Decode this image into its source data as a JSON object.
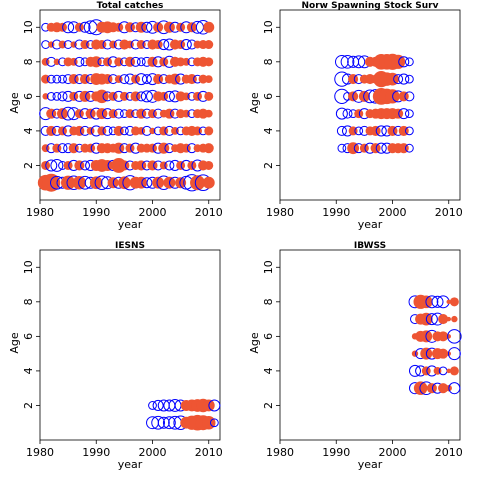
{
  "figure": {
    "marker_colors": {
      "negative": "#0000ff",
      "positive": "#ee5533"
    }
  },
  "chart_data": [
    {
      "type": "scatter",
      "subtype": "bubble",
      "title": "Total catches",
      "xlabel": "year",
      "ylabel": "Age",
      "xlim": [
        1980,
        2012
      ],
      "ylim": [
        0,
        11
      ],
      "xticks": [
        1980,
        1990,
        2000,
        2010
      ],
      "yticks": [
        2,
        4,
        6,
        8,
        10
      ],
      "grid": false,
      "legend": "none",
      "years": [
        1981,
        1982,
        1983,
        1984,
        1985,
        1986,
        1987,
        1988,
        1989,
        1990,
        1991,
        1992,
        1993,
        1994,
        1995,
        1996,
        1997,
        1998,
        1999,
        2000,
        2001,
        2002,
        2003,
        2004,
        2005,
        2006,
        2007,
        2008,
        2009,
        2010
      ],
      "ages": [
        1,
        2,
        3,
        4,
        5,
        6,
        7,
        8,
        9,
        10
      ],
      "residuals_by_age": [
        [
          1.2,
          1.6,
          -0.8,
          -0.6,
          1.0,
          -0.9,
          0.9,
          -0.8,
          -0.6,
          0.8,
          -0.9,
          -0.7,
          0.6,
          -0.6,
          0.8,
          -1.0,
          0.7,
          0.7,
          -0.5,
          -0.6,
          0.7,
          -0.9,
          0.7,
          -0.6,
          0.6,
          -0.8,
          -1.3,
          1.1,
          -1.2,
          0.7
        ],
        [
          0.4,
          -0.6,
          -0.7,
          -0.3,
          0.4,
          -0.5,
          0.5,
          -0.4,
          -0.5,
          0.6,
          0.8,
          0.6,
          -0.5,
          1.1,
          0.5,
          -0.4,
          0.4,
          0.5,
          -0.4,
          0.5,
          -0.4,
          0.3,
          -0.4,
          -0.5,
          0.4,
          -0.5,
          0.4,
          -0.6,
          0.5,
          0.4
        ],
        [
          0.3,
          -0.4,
          0.4,
          -0.4,
          -0.4,
          0.5,
          -0.3,
          0.4,
          0.4,
          -0.5,
          0.5,
          0.5,
          0.4,
          0.6,
          -0.4,
          0.4,
          -0.5,
          0.4,
          0.4,
          0.4,
          -0.5,
          0.6,
          -0.4,
          0.3,
          0.5,
          0.4,
          -0.4,
          0.3,
          0.4,
          0.5
        ],
        [
          -0.4,
          0.5,
          -0.4,
          0.4,
          -0.5,
          0.4,
          0.5,
          -0.4,
          0.3,
          -0.5,
          0.4,
          -0.4,
          -0.3,
          0.5,
          -0.3,
          -0.4,
          0.4,
          0.3,
          -0.4,
          0.2,
          -0.3,
          0.4,
          -0.4,
          0.3,
          -0.3,
          0.4,
          0.5,
          0.4,
          -0.3,
          0.4
        ],
        [
          -0.7,
          0.5,
          -0.4,
          0.6,
          -0.8,
          -0.7,
          0.4,
          -0.5,
          0.5,
          -0.6,
          0.6,
          -0.5,
          0.4,
          -0.4,
          -0.3,
          0.4,
          -0.3,
          0.5,
          -0.4,
          0.4,
          -0.4,
          0.3,
          0.5,
          -0.4,
          0.4,
          0.3,
          -0.3,
          0.4,
          0.5,
          0.3
        ],
        [
          0.2,
          -0.3,
          -0.3,
          -0.4,
          -0.5,
          0.4,
          -0.5,
          0.6,
          -0.5,
          0.5,
          0.9,
          -0.4,
          0.4,
          -0.5,
          0.4,
          -0.3,
          0.5,
          -0.4,
          -0.6,
          -0.7,
          0.5,
          0.4,
          -0.5,
          -0.6,
          0.5,
          0.3,
          -0.3,
          0.4,
          -0.5,
          0.4
        ],
        [
          0.4,
          -0.3,
          -0.3,
          -0.3,
          -0.4,
          0.5,
          -0.4,
          0.5,
          -0.4,
          0.7,
          0.6,
          0.5,
          -0.4,
          0.3,
          -0.4,
          -0.5,
          0.4,
          -0.6,
          -0.4,
          -0.6,
          0.5,
          -0.4,
          0.4,
          0.6,
          -0.5,
          0.4,
          0.5,
          -0.3,
          0.4,
          0.3
        ],
        [
          0.3,
          -0.4,
          0.2,
          -0.3,
          0.4,
          0.3,
          -0.4,
          -0.3,
          0.5,
          0.6,
          -0.3,
          0.4,
          -0.5,
          0.4,
          -0.3,
          0.5,
          -0.4,
          -0.3,
          -0.4,
          0.5,
          -0.5,
          0.4,
          -0.6,
          0.5,
          0.4,
          0.3,
          -0.3,
          0.4,
          0.5,
          0.4
        ],
        [
          -0.3,
          0.2,
          -0.4,
          0.3,
          -0.3,
          0.2,
          -0.4,
          0.4,
          -0.3,
          0.5,
          0.4,
          -0.4,
          0.3,
          -0.4,
          0.5,
          0.3,
          -0.4,
          0.4,
          -0.3,
          0.5,
          0.4,
          -0.5,
          -0.6,
          0.5,
          0.4,
          -0.5,
          -0.4,
          0.3,
          0.4,
          0.4
        ],
        [
          -0.3,
          0.4,
          0.5,
          0.4,
          -0.6,
          -0.6,
          0.4,
          -0.5,
          -0.8,
          -1.1,
          0.6,
          0.7,
          0.5,
          0.4,
          -0.6,
          0.5,
          -0.4,
          0.6,
          -0.5,
          -0.7,
          0.5,
          -0.8,
          0.6,
          -0.5,
          0.4,
          -0.6,
          0.5,
          -0.7,
          -0.9,
          0.6
        ]
      ]
    },
    {
      "type": "scatter",
      "subtype": "bubble",
      "title": "Norw Spawning Stock Surv",
      "xlabel": "year",
      "ylabel": "Age",
      "xlim": [
        1980,
        2012
      ],
      "ylim": [
        0,
        11
      ],
      "xticks": [
        1980,
        1990,
        2000,
        2010
      ],
      "yticks": [
        2,
        4,
        6,
        8,
        10
      ],
      "grid": false,
      "legend": "none",
      "years": [
        1991,
        1992,
        1993,
        1994,
        1995,
        1996,
        1997,
        1998,
        1999,
        2000,
        2001,
        2002,
        2003
      ],
      "ages": [
        3,
        4,
        5,
        6,
        7,
        8
      ],
      "residuals_by_age": [
        [
          -0.3,
          -0.4,
          0.7,
          -0.4,
          0.4,
          -0.5,
          0.5,
          -0.5,
          -0.5,
          0.5,
          0.5,
          0.5,
          -0.3
        ],
        [
          -0.4,
          -0.5,
          0.4,
          -0.3,
          -0.4,
          0.4,
          0.5,
          -0.5,
          -0.5,
          0.5,
          -0.4,
          0.5,
          -0.3
        ],
        [
          -0.6,
          -0.4,
          -0.3,
          0.4,
          -0.5,
          0.4,
          0.5,
          0.6,
          0.6,
          0.6,
          0.5,
          -0.5,
          -0.3
        ],
        [
          -1.0,
          -0.3,
          0.5,
          -0.7,
          0.6,
          -0.8,
          -0.9,
          1.4,
          1.2,
          1.0,
          -0.6,
          0.5,
          -0.4
        ],
        [
          -1.0,
          -0.5,
          0.5,
          -0.4,
          0.4,
          0.5,
          0.4,
          1.3,
          0.9,
          0.8,
          -0.4,
          -0.5,
          -0.3
        ],
        [
          -0.8,
          -0.8,
          -0.6,
          -0.7,
          -0.7,
          0.5,
          0.5,
          1.2,
          1.2,
          1.3,
          1.0,
          -0.5,
          -0.3
        ]
      ]
    },
    {
      "type": "scatter",
      "subtype": "bubble",
      "title": "IESNS",
      "xlabel": "year",
      "ylabel": "Age",
      "xlim": [
        1980,
        2012
      ],
      "ylim": [
        0,
        11
      ],
      "xticks": [
        1980,
        1990,
        2000,
        2010
      ],
      "yticks": [
        2,
        4,
        6,
        8,
        10
      ],
      "grid": false,
      "legend": "none",
      "years": [
        2000,
        2001,
        2002,
        2003,
        2004,
        2005,
        2006,
        2007,
        2008,
        2009,
        2010,
        2011
      ],
      "ages": [
        1,
        2
      ],
      "residuals_by_age": [
        [
          -0.7,
          -0.8,
          -0.6,
          -0.7,
          -0.8,
          -0.9,
          0.7,
          1.0,
          1.2,
          1.1,
          0.9,
          -0.3
        ],
        [
          -0.3,
          -0.5,
          -0.6,
          -0.6,
          -0.7,
          -0.6,
          0.6,
          0.7,
          0.8,
          0.9,
          0.7,
          -0.6
        ]
      ]
    },
    {
      "type": "scatter",
      "subtype": "bubble",
      "title": "IBWSS",
      "xlabel": "year",
      "ylabel": "Age",
      "xlim": [
        1980,
        2012
      ],
      "ylim": [
        0,
        11
      ],
      "xticks": [
        1980,
        1990,
        2000,
        2010
      ],
      "yticks": [
        2,
        4,
        6,
        8,
        10
      ],
      "grid": false,
      "legend": "none",
      "years": [
        2004,
        2005,
        2006,
        2007,
        2008,
        2009,
        2010,
        2011
      ],
      "ages": [
        3,
        4,
        5,
        6,
        7,
        8
      ],
      "residuals_by_age": [
        [
          -0.6,
          0.9,
          -0.8,
          0.5,
          -0.5,
          0.5,
          0.2,
          -0.6
        ],
        [
          -0.6,
          -0.5,
          0.4,
          -0.5,
          0.3,
          -0.3,
          0.1,
          0.4
        ],
        [
          0.2,
          -0.5,
          0.7,
          -0.6,
          0.6,
          0.5,
          0.1,
          -0.7
        ],
        [
          0.2,
          0.6,
          0.7,
          -0.7,
          0.5,
          0.5,
          0.1,
          -0.9
        ],
        [
          -0.4,
          0.6,
          0.8,
          -0.6,
          -0.7,
          0.5,
          0.1,
          0.2
        ],
        [
          -0.7,
          1.0,
          0.8,
          -0.7,
          -0.6,
          -0.7,
          0.1,
          0.4
        ]
      ]
    }
  ]
}
